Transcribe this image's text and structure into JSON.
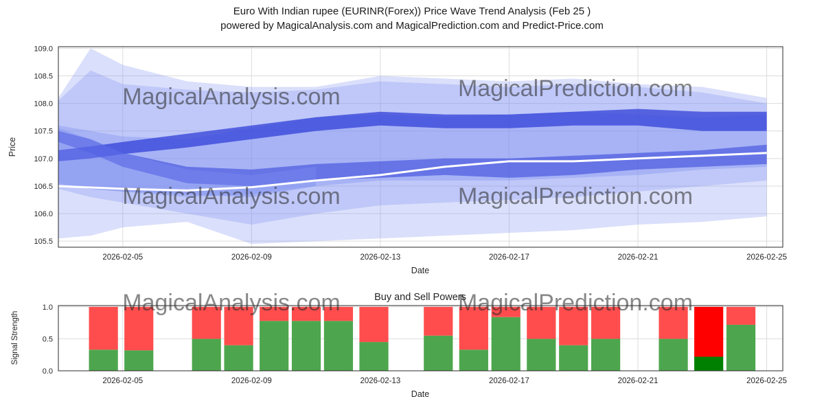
{
  "title": {
    "line1": "Euro With Indian rupee (EURINR(Forex)) Price Wave Trend Analysis (Feb 25 )",
    "line2": "powered by MagicalAnalysis.com and MagicalPrediction.com and Predict-Price.com"
  },
  "watermark": {
    "left": "MagicalAnalysis.com",
    "right": "MagicalPrediction.com"
  },
  "colors": {
    "band_light": "#7b8cf0",
    "band_dark": "#3140d8",
    "grid": "#dcdcdc",
    "axis": "#2a2a2a",
    "watermark": "#c8c8c8",
    "white_line": "#ffffff",
    "bar_green": "#4da64d",
    "bar_red": "#ff4d4d",
    "bar_green_solid": "#008000",
    "bar_red_solid": "#ff0000"
  },
  "chart_data": [
    {
      "type": "area",
      "name": "price_wave_trend",
      "xlabel": "Date",
      "ylabel": "Price",
      "xlim": [
        0,
        22.5
      ],
      "ylim": [
        105.39,
        109.03
      ],
      "y_ticks": [
        105.5,
        106.0,
        106.5,
        107.0,
        107.5,
        108.0,
        108.5,
        109.0
      ],
      "x_ticks": [
        {
          "day": 2,
          "label": "2026-02-05"
        },
        {
          "day": 6,
          "label": "2026-02-09"
        },
        {
          "day": 10,
          "label": "2026-02-13"
        },
        {
          "day": 14,
          "label": "2026-02-17"
        },
        {
          "day": 18,
          "label": "2026-02-21"
        },
        {
          "day": 22,
          "label": "2026-02-25"
        }
      ],
      "bands": [
        {
          "tone": "light",
          "opacity": 0.28,
          "x": [
            0,
            1,
            2,
            4,
            6,
            8,
            10,
            12,
            14,
            16,
            18,
            20,
            22
          ],
          "upper": [
            108.1,
            109.0,
            108.7,
            108.4,
            108.3,
            108.3,
            108.5,
            108.45,
            108.4,
            108.45,
            108.35,
            108.3,
            108.1
          ],
          "lower": [
            105.55,
            105.6,
            105.75,
            105.85,
            105.45,
            105.5,
            105.55,
            105.6,
            105.65,
            105.7,
            105.8,
            105.85,
            105.95
          ]
        },
        {
          "tone": "light",
          "opacity": 0.28,
          "x": [
            0,
            1,
            2,
            4,
            6,
            8,
            10,
            12,
            14,
            16,
            18,
            20,
            22
          ],
          "upper": [
            108.05,
            108.6,
            108.35,
            108.25,
            108.2,
            108.25,
            108.4,
            108.35,
            108.3,
            108.35,
            108.3,
            108.2,
            108.0
          ],
          "lower": [
            106.45,
            106.3,
            106.2,
            106.0,
            105.8,
            106.0,
            106.15,
            106.2,
            106.25,
            106.3,
            106.4,
            106.5,
            106.6
          ]
        },
        {
          "tone": "light",
          "opacity": 0.35,
          "x": [
            0,
            1,
            2,
            4,
            6,
            8,
            10,
            12,
            14,
            16,
            18,
            20,
            22
          ],
          "upper": [
            107.6,
            107.5,
            107.4,
            107.35,
            107.55,
            107.75,
            107.8,
            107.75,
            107.8,
            107.85,
            107.8,
            107.75,
            107.8
          ],
          "lower": [
            106.55,
            106.45,
            106.4,
            106.3,
            106.35,
            106.5,
            106.6,
            106.6,
            106.6,
            106.65,
            106.7,
            106.8,
            106.85
          ]
        },
        {
          "tone": "dark",
          "opacity": 0.75,
          "x": [
            0,
            1,
            2,
            4,
            6,
            8,
            10,
            12,
            14,
            16,
            18,
            20,
            22
          ],
          "upper": [
            107.15,
            107.22,
            107.3,
            107.45,
            107.6,
            107.75,
            107.85,
            107.8,
            107.8,
            107.85,
            107.9,
            107.85,
            107.85
          ],
          "lower": [
            106.95,
            107.0,
            107.08,
            107.2,
            107.35,
            107.5,
            107.6,
            107.55,
            107.55,
            107.6,
            107.6,
            107.5,
            107.5
          ]
        },
        {
          "tone": "dark",
          "opacity": 0.55,
          "x": [
            0,
            1,
            2,
            4,
            6,
            8,
            10,
            12,
            14,
            16,
            18,
            20,
            22
          ],
          "upper": [
            107.5,
            107.35,
            107.1,
            106.85,
            106.8,
            106.9,
            106.95,
            107.0,
            107.0,
            107.05,
            107.1,
            107.15,
            107.25
          ],
          "lower": [
            107.3,
            107.1,
            106.85,
            106.55,
            106.5,
            106.6,
            106.65,
            106.7,
            106.65,
            106.7,
            106.8,
            106.85,
            106.9
          ]
        },
        {
          "tone": "light",
          "opacity": 0.4,
          "x": [
            0,
            1,
            2,
            4,
            6,
            8
          ],
          "upper": [
            107.55,
            107.35,
            107.1,
            106.8,
            106.7,
            106.85
          ],
          "lower": [
            106.5,
            106.45,
            106.4,
            106.35,
            106.3,
            106.5
          ]
        }
      ],
      "white_line": {
        "x": [
          0,
          2,
          4,
          6,
          8,
          10,
          12,
          14,
          16,
          18,
          20,
          22
        ],
        "y": [
          106.5,
          106.45,
          106.42,
          106.48,
          106.6,
          106.7,
          106.85,
          106.95,
          106.95,
          107.0,
          107.05,
          107.1
        ]
      }
    },
    {
      "type": "bar",
      "name": "buy_sell_powers",
      "title": "Buy and Sell Powers",
      "xlabel": "Date",
      "ylabel": "Signal Strength",
      "xlim": [
        0,
        22.5
      ],
      "ylim": [
        0,
        1.02
      ],
      "bar_width": 0.9,
      "y_ticks": [
        0.0,
        0.5,
        1.0
      ],
      "x_ticks": [
        {
          "day": 2,
          "label": "2026-02-05"
        },
        {
          "day": 6,
          "label": "2026-02-09"
        },
        {
          "day": 10,
          "label": "2026-02-13"
        },
        {
          "day": 14,
          "label": "2026-02-17"
        },
        {
          "day": 18,
          "label": "2026-02-21"
        },
        {
          "day": 22,
          "label": "2026-02-25"
        }
      ],
      "bars": [
        {
          "day": 1.4,
          "buy": 0.33,
          "sell": 0.67,
          "solid": false
        },
        {
          "day": 2.5,
          "buy": 0.32,
          "sell": 0.68,
          "solid": false
        },
        {
          "day": 4.6,
          "buy": 0.5,
          "sell": 0.5,
          "solid": false
        },
        {
          "day": 5.6,
          "buy": 0.4,
          "sell": 0.6,
          "solid": false
        },
        {
          "day": 6.7,
          "buy": 0.78,
          "sell": 0.22,
          "solid": false
        },
        {
          "day": 7.7,
          "buy": 0.78,
          "sell": 0.22,
          "solid": false
        },
        {
          "day": 8.7,
          "buy": 0.78,
          "sell": 0.22,
          "solid": false
        },
        {
          "day": 9.8,
          "buy": 0.45,
          "sell": 0.55,
          "solid": false
        },
        {
          "day": 11.8,
          "buy": 0.55,
          "sell": 0.45,
          "solid": false
        },
        {
          "day": 12.9,
          "buy": 0.33,
          "sell": 0.67,
          "solid": false
        },
        {
          "day": 13.9,
          "buy": 0.84,
          "sell": 0.16,
          "solid": false
        },
        {
          "day": 15.0,
          "buy": 0.5,
          "sell": 0.5,
          "solid": false
        },
        {
          "day": 16.0,
          "buy": 0.4,
          "sell": 0.6,
          "solid": false
        },
        {
          "day": 17.0,
          "buy": 0.5,
          "sell": 0.5,
          "solid": false
        },
        {
          "day": 19.1,
          "buy": 0.5,
          "sell": 0.5,
          "solid": false
        },
        {
          "day": 20.2,
          "buy": 0.22,
          "sell": 0.78,
          "solid": true
        },
        {
          "day": 21.2,
          "buy": 0.72,
          "sell": 0.28,
          "solid": false
        }
      ]
    }
  ]
}
